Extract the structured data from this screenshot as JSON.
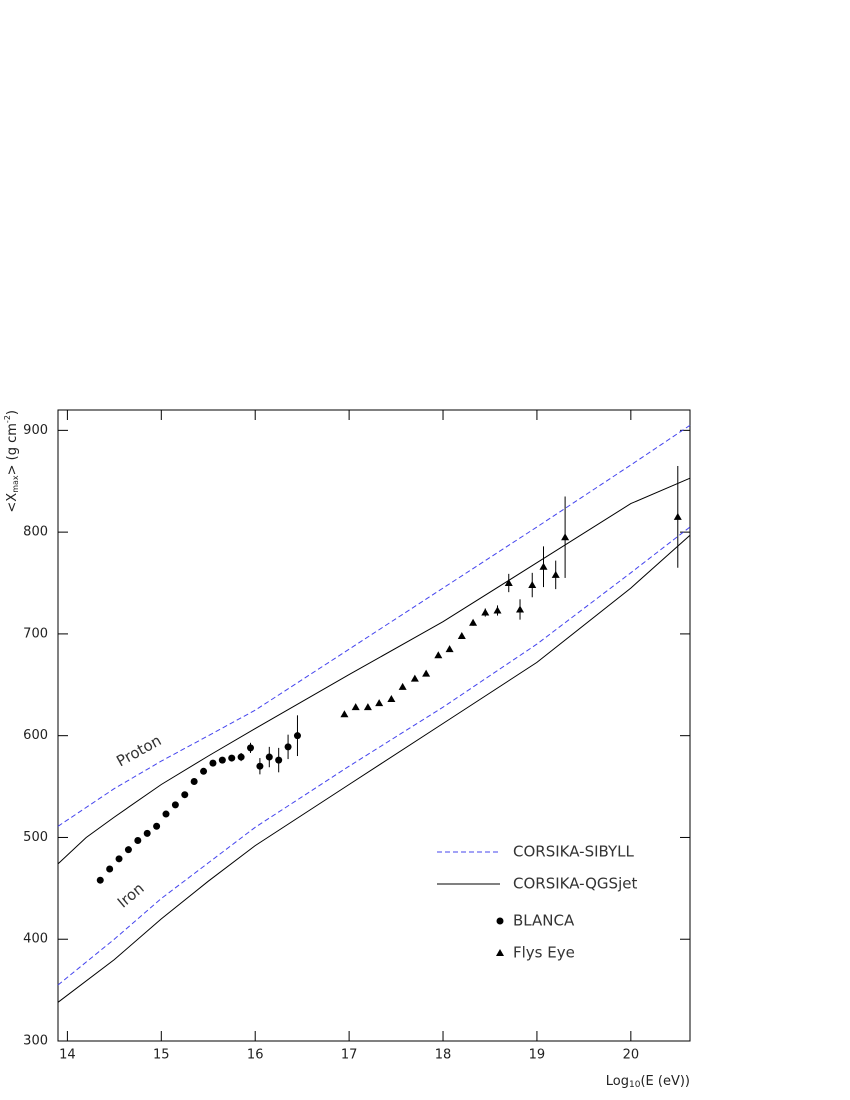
{
  "chart_data": {
    "type": "line",
    "x_label": [
      "Log",
      "10",
      "(E (eV))"
    ],
    "y_label": [
      "<X",
      "max",
      "> (g cm",
      "-2",
      ")"
    ],
    "annotations": [
      "Proton",
      "Iron"
    ],
    "xlim": [
      13.9,
      20.63
    ],
    "xticks": [
      14,
      15,
      16,
      17,
      18,
      19,
      20
    ],
    "ylim": [
      300,
      920
    ],
    "yticks": [
      300,
      400,
      500,
      600,
      700,
      800,
      900
    ],
    "models": [
      {
        "name": "CORSIKA-SIBYLL",
        "color": "#4444ee",
        "dashed": true,
        "curves": [
          {
            "x": [
              13.9,
              14.5,
              15,
              15.5,
              16,
              17,
              18,
              19,
              20,
              20.63
            ],
            "values": [
              511,
              548,
              575,
              600,
              625,
              685,
              745,
              805,
              866,
              905
            ]
          },
          {
            "x": [
              13.9,
              14.5,
              15,
              15.5,
              16,
              17,
              18,
              19,
              20,
              20.63
            ],
            "values": [
              355,
              400,
              440,
              475,
              510,
              570,
              628,
              690,
              760,
              805
            ]
          }
        ]
      },
      {
        "name": "CORSIKA-QGSjet",
        "color": "#000000",
        "dashed": false,
        "curves": [
          {
            "x": [
              13.9,
              14.2,
              14.5,
              15,
              15.5,
              16,
              17,
              18,
              19,
              20,
              20.63
            ],
            "values": [
              474,
              500,
              520,
              552,
              580,
              607,
              660,
              712,
              770,
              828,
              853
            ]
          },
          {
            "x": [
              13.9,
              14.5,
              15,
              15.5,
              16,
              17,
              18,
              19,
              20,
              20.63
            ],
            "values": [
              338,
              380,
              420,
              457,
              492,
              552,
              612,
              672,
              745,
              797
            ]
          }
        ]
      }
    ],
    "series": [
      {
        "name": "BLANCA",
        "marker": "circle",
        "color": "#000000",
        "x": [
          14.35,
          14.45,
          14.55,
          14.65,
          14.75,
          14.85,
          14.95,
          15.05,
          15.15,
          15.25,
          15.35,
          15.45,
          15.55,
          15.65,
          15.75,
          15.85,
          15.95,
          16.05,
          16.15,
          16.25,
          16.35,
          16.45
        ],
        "values": [
          458,
          469,
          479,
          488,
          497,
          504,
          511,
          523,
          532,
          542,
          555,
          565,
          573,
          576,
          578,
          579,
          588,
          570,
          579,
          576,
          589,
          600
        ],
        "errors": [
          2,
          2,
          2,
          2,
          2,
          2,
          2,
          2,
          2,
          2,
          2,
          2,
          2,
          2,
          3,
          4,
          5,
          8,
          10,
          12,
          12,
          20
        ]
      },
      {
        "name": "Flys Eye",
        "marker": "triangle",
        "color": "#000000",
        "x": [
          16.95,
          17.07,
          17.2,
          17.32,
          17.45,
          17.57,
          17.7,
          17.82,
          17.95,
          18.07,
          18.2,
          18.32,
          18.45,
          18.58,
          18.7,
          18.82,
          18.95,
          19.07,
          19.2,
          19.3,
          20.5
        ],
        "values": [
          621,
          628,
          628,
          632,
          636,
          648,
          656,
          661,
          679,
          685,
          698,
          711,
          721,
          723,
          750,
          724,
          748,
          766,
          758,
          795,
          815
        ],
        "errors": [
          2,
          2,
          2,
          2,
          2,
          2,
          2,
          2,
          2,
          2,
          2,
          3,
          4,
          5,
          9,
          10,
          12,
          20,
          14,
          40,
          50
        ]
      }
    ]
  }
}
